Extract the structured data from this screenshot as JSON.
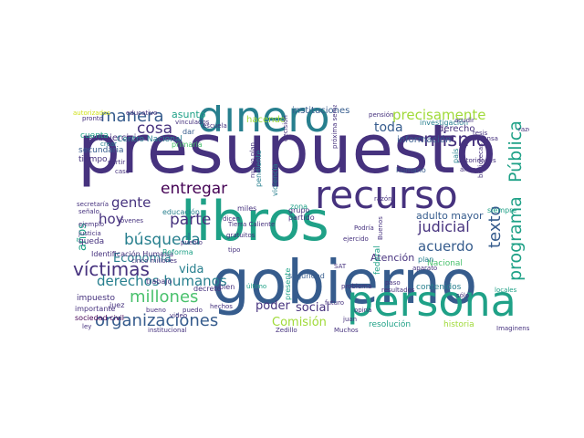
{
  "palette": {
    "purple": "#46327e",
    "indigo": "#365c8d",
    "blue": "#277f8e",
    "teal": "#1fa187",
    "green": "#4ac16d",
    "lime": "#a0da39",
    "yellow": "#d0e11c",
    "dark": "#440154"
  },
  "words": [
    {
      "t": "presupuesto",
      "c": "#46327e"
    },
    {
      "t": "libros",
      "c": "#1fa187"
    },
    {
      "t": "gobierno",
      "c": "#365c8d"
    },
    {
      "t": "dinero",
      "c": "#277f8e"
    },
    {
      "t": "persona",
      "c": "#1fa187"
    },
    {
      "t": "recurso",
      "c": "#46327e"
    },
    {
      "t": "víctimas",
      "c": "#46327e"
    },
    {
      "t": "organizaciones",
      "c": "#365c8d"
    },
    {
      "t": "millones",
      "c": "#4ac16d"
    },
    {
      "t": "manera",
      "c": "#365c8d"
    },
    {
      "t": "mismo",
      "c": "#46327e"
    },
    {
      "t": "precisamente",
      "c": "#a0da39"
    },
    {
      "t": "Pública",
      "c": "#1fa187"
    },
    {
      "t": "programa",
      "c": "#1fa187"
    },
    {
      "t": "texto",
      "c": "#365c8d"
    },
    {
      "t": "búsqueda",
      "c": "#277f8e"
    },
    {
      "t": "derechos humanos",
      "c": "#277f8e"
    },
    {
      "t": "entregar",
      "c": "#440154"
    },
    {
      "t": "judicial",
      "c": "#46327e"
    },
    {
      "t": "parte",
      "c": "#46327e"
    },
    {
      "t": "cosa",
      "c": "#46327e"
    },
    {
      "t": "gente",
      "c": "#46327e"
    },
    {
      "t": "hoy",
      "c": "#46327e"
    },
    {
      "t": "toda",
      "c": "#365c8d"
    },
    {
      "t": "acuerdo",
      "c": "#365c8d"
    },
    {
      "t": "Economía",
      "c": "#277f8e"
    },
    {
      "t": "vida",
      "c": "#277f8e"
    },
    {
      "t": "poder",
      "c": "#46327e"
    },
    {
      "t": "social",
      "c": "#46327e"
    },
    {
      "t": "Comisión",
      "c": "#a0da39"
    },
    {
      "t": "años",
      "c": "#1fa187"
    },
    {
      "t": "asunto",
      "c": "#1fa187"
    },
    {
      "t": "adulto mayor",
      "c": "#365c8d"
    },
    {
      "t": "Atención",
      "c": "#46327e"
    },
    {
      "t": "instituciones",
      "c": "#365c8d"
    },
    {
      "t": "hacendo",
      "c": "#a0da39"
    },
    {
      "t": "derecho",
      "c": "#46327e"
    },
    {
      "t": "información",
      "c": "#365c8d"
    },
    {
      "t": "subejercicio",
      "c": "#46327e"
    },
    {
      "t": "cuenta",
      "c": "#1fa187"
    },
    {
      "t": "Centro Nacional",
      "c": "#277f8e"
    },
    {
      "t": "secundaria",
      "c": "#365c8d"
    },
    {
      "t": "tiempo",
      "c": "#46327e"
    },
    {
      "t": "queda",
      "c": "#46327e"
    },
    {
      "t": "impuesto",
      "c": "#46327e"
    },
    {
      "t": "importante",
      "c": "#46327e"
    },
    {
      "t": "sociedad civil",
      "c": "#440154"
    },
    {
      "t": "resolución",
      "c": "#1fa187"
    },
    {
      "t": "historia",
      "c": "#a0da39"
    },
    {
      "t": "contenidos",
      "c": "#277f8e"
    },
    {
      "t": "Nacional",
      "c": "#4ac16d"
    },
    {
      "t": "federal",
      "c": "#1fa187"
    },
    {
      "t": "Identificación Humana",
      "c": "#46327e"
    },
    {
      "t": "Reforma",
      "c": "#1fa187"
    },
    {
      "t": "educación",
      "c": "#277f8e"
    },
    {
      "t": "primaria",
      "c": "#4ac16d"
    },
    {
      "t": "pendiente",
      "c": "#277f8e"
    },
    {
      "t": "violencia",
      "c": "#277f8e"
    },
    {
      "t": "seguridad",
      "c": "#365c8d"
    },
    {
      "t": "partido",
      "c": "#46327e"
    },
    {
      "t": "grupo",
      "c": "#46327e"
    },
    {
      "t": "zona",
      "c": "#1fa187"
    },
    {
      "t": "bien",
      "c": "#46327e"
    },
    {
      "t": "miles",
      "c": "#46327e"
    },
    {
      "t": "dar",
      "c": "#365c8d"
    },
    {
      "t": "decreto",
      "c": "#46327e"
    },
    {
      "t": "humano",
      "c": "#365c8d"
    },
    {
      "t": "país",
      "c": "#277f8e"
    },
    {
      "t": "siempre",
      "c": "#1fa187"
    },
    {
      "t": "investigación",
      "c": "#277f8e"
    },
    {
      "t": "plan",
      "c": "#277f8e"
    },
    {
      "t": "presente",
      "c": "#1fa187"
    },
    {
      "t": "trabajo",
      "c": "#46327e"
    },
    {
      "t": "juez",
      "c": "#46327e"
    },
    {
      "t": "último",
      "c": "#1fa187"
    },
    {
      "t": "pueblo",
      "c": "#46327e"
    },
    {
      "t": "Tierra Caliente",
      "c": "#46327e"
    },
    {
      "t": "vinculados",
      "c": "#46327e"
    },
    {
      "t": "escuela",
      "c": "#46327e"
    },
    {
      "t": "educativo",
      "c": "#46327e"
    },
    {
      "t": "autorizados",
      "c": "#d0e11c"
    },
    {
      "t": "pronto",
      "c": "#46327e"
    },
    {
      "t": "crear",
      "c": "#277f8e"
    },
    {
      "t": "pensión",
      "c": "#46327e"
    },
    {
      "t": "razones",
      "c": "#46327e"
    },
    {
      "t": "autoridades",
      "c": "#46327e"
    },
    {
      "t": "ejemplo",
      "c": "#46327e"
    },
    {
      "t": "justicia",
      "c": "#46327e"
    },
    {
      "t": "jóvenes",
      "c": "#46327e"
    },
    {
      "t": "cinco millones",
      "c": "#46327e"
    },
    {
      "t": "hechos",
      "c": "#46327e"
    },
    {
      "t": "puedo",
      "c": "#46327e"
    },
    {
      "t": "futuro",
      "c": "#46327e"
    },
    {
      "t": "opina",
      "c": "#46327e"
    },
    {
      "t": "problema",
      "c": "#46327e"
    },
    {
      "t": "resultados",
      "c": "#46327e"
    },
    {
      "t": "aparato",
      "c": "#46327e"
    },
    {
      "t": "ejercido",
      "c": "#46327e"
    },
    {
      "t": "razón",
      "c": "#46327e"
    },
    {
      "t": "Podría",
      "c": "#46327e"
    },
    {
      "t": "locales",
      "c": "#1fa187"
    },
    {
      "t": "Imaginense",
      "c": "#46327e"
    },
    {
      "t": "Muchos",
      "c": "#46327e"
    },
    {
      "t": "institucional",
      "c": "#46327e"
    },
    {
      "t": "ley",
      "c": "#46327e"
    },
    {
      "t": "video",
      "c": "#46327e"
    },
    {
      "t": "bueno",
      "c": "#46327e"
    },
    {
      "t": "gratuitos",
      "c": "#46327e"
    },
    {
      "t": "dicen",
      "c": "#46327e"
    },
    {
      "t": "tipo",
      "c": "#46327e"
    },
    {
      "t": "acudir",
      "c": "#46327e"
    },
    {
      "t": "ánimo",
      "c": "#46327e"
    },
    {
      "t": "señalo",
      "c": "#46327e"
    },
    {
      "t": "Zedillo",
      "c": "#46327e"
    },
    {
      "t": "SAT",
      "c": "#46327e"
    },
    {
      "t": "juan",
      "c": "#46327e"
    },
    {
      "t": "decisión",
      "c": "#46327e"
    },
    {
      "t": "nuevo plan",
      "c": "#46327e"
    },
    {
      "t": "próxima semana",
      "c": "#46327e"
    },
    {
      "t": "Buenos",
      "c": "#46327e"
    },
    {
      "t": "caso",
      "c": "#46327e"
    },
    {
      "t": "sólo",
      "c": "#46327e"
    },
    {
      "t": "paso",
      "c": "#46327e"
    },
    {
      "t": "bibliotecas",
      "c": "#46327e"
    },
    {
      "t": "defensa",
      "c": "#46327e"
    },
    {
      "t": "tesis",
      "c": "#46327e"
    },
    {
      "t": "partir",
      "c": "#46327e"
    },
    {
      "t": "secretaría",
      "c": "#46327e"
    }
  ]
}
